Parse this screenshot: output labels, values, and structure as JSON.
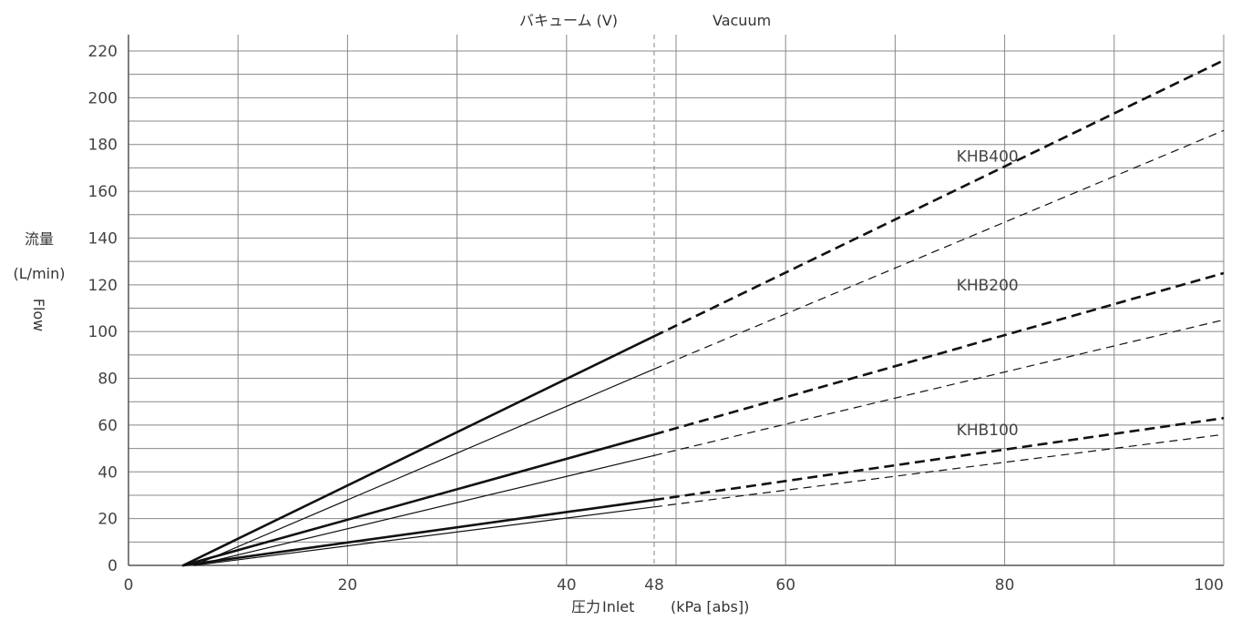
{
  "chart_data": {
    "type": "line",
    "top_label": "バキューム (V)",
    "top_label_en": "Vacuum",
    "xlabel_jp": "圧力",
    "xlabel_en": "Inlet",
    "xlabel_unit": "(kPa [abs])",
    "ylabel_jp": "流量",
    "ylabel_unit": "(L/min)",
    "ylabel_en": "Flow",
    "xlim": [
      0,
      100
    ],
    "ylim": [
      0,
      220
    ],
    "x_ticks": [
      0,
      20,
      40,
      48,
      60,
      80,
      100
    ],
    "x_tick_labels": [
      "0",
      "20",
      "40",
      "48",
      "60",
      "80",
      "100"
    ],
    "y_ticks": [
      0,
      20,
      40,
      60,
      80,
      100,
      120,
      140,
      160,
      180,
      200,
      220
    ],
    "y_tick_labels": [
      "0",
      "20",
      "40",
      "60",
      "80",
      "100",
      "120",
      "140",
      "160",
      "180",
      "200",
      "220"
    ],
    "vacuum_boundary_x": 48,
    "grid": true,
    "series_labels": [
      {
        "text": "KHB400",
        "series": "KHB400"
      },
      {
        "text": "KHB200",
        "series": "KHB200"
      },
      {
        "text": "KHB100",
        "series": "KHB100"
      }
    ],
    "series": [
      {
        "name": "KHB400",
        "line": "thick",
        "x": [
          5,
          48,
          100
        ],
        "y": [
          0,
          98,
          216
        ]
      },
      {
        "name": "KHB400",
        "line": "thin",
        "x": [
          6,
          48,
          100
        ],
        "y": [
          0,
          84,
          186
        ]
      },
      {
        "name": "KHB200",
        "line": "thick",
        "x": [
          5,
          48,
          100
        ],
        "y": [
          0,
          56,
          125
        ]
      },
      {
        "name": "KHB200",
        "line": "thin",
        "x": [
          6,
          48,
          100
        ],
        "y": [
          0,
          47,
          105
        ]
      },
      {
        "name": "KHB100",
        "line": "thick",
        "x": [
          5,
          48,
          100
        ],
        "y": [
          0,
          28,
          63
        ]
      },
      {
        "name": "KHB100",
        "line": "thin",
        "x": [
          6,
          48,
          100
        ],
        "y": [
          0,
          25,
          56
        ]
      }
    ],
    "colors": {
      "line": "#111111",
      "grid": "#888888",
      "boundary": "#999999"
    }
  }
}
